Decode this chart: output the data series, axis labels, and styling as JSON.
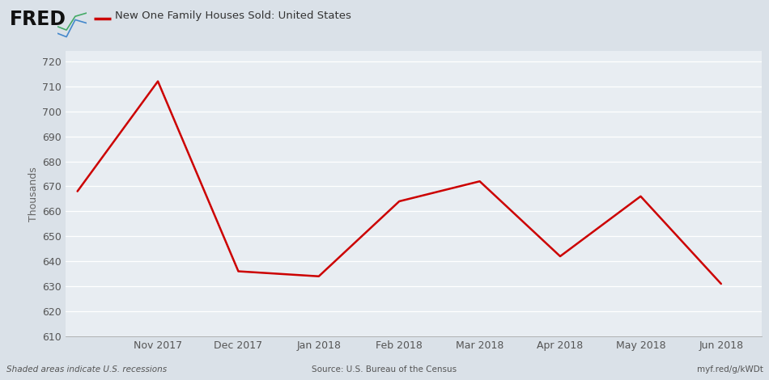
{
  "title": "New One Family Houses Sold: United States",
  "ylabel": "Thousands",
  "source_text": "Source: U.S. Bureau of the Census",
  "recession_text": "Shaded areas indicate U.S. recessions",
  "url_text": "myf.red/g/kWDt",
  "background_color": "#dae1e8",
  "plot_bg_color": "#e8edf2",
  "line_color": "#cc0000",
  "x_labels": [
    "Nov 2017",
    "Dec 2017",
    "Jan 2018",
    "Feb 2018",
    "Mar 2018",
    "Apr 2018",
    "May 2018",
    "Jun 2018"
  ],
  "y_values": [
    668,
    712,
    636,
    634,
    664,
    672,
    642,
    666,
    631
  ],
  "ylim": [
    610,
    724
  ],
  "yticks": [
    610,
    620,
    630,
    640,
    650,
    660,
    670,
    680,
    690,
    700,
    710,
    720
  ],
  "grid_color": "#ffffff",
  "line_width": 1.8,
  "fred_text": "FRED",
  "legend_line_color": "#cc0000"
}
